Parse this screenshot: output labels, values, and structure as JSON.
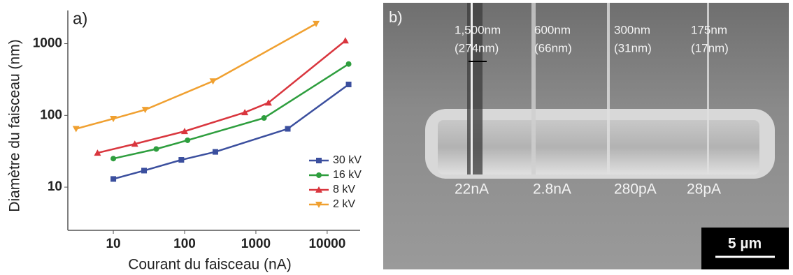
{
  "chart_data": {
    "type": "line",
    "panel_label": "a)",
    "x_label": "Courant du faisceau (nA)",
    "y_label": "Diamètre du faisceau (nm)",
    "xscale": "log",
    "yscale": "log",
    "xlim": [
      2.3,
      29000
    ],
    "ylim": [
      2.5,
      2900
    ],
    "xticks": [
      10,
      100,
      1000,
      10000
    ],
    "yticks": [
      10,
      100,
      1000
    ],
    "series": [
      {
        "name": "30 kV",
        "color": "#3b4f9e",
        "marker": "square",
        "x": [
          10,
          27,
          90,
          270,
          2800,
          20000
        ],
        "values": [
          13,
          17,
          24,
          31,
          65,
          270
        ]
      },
      {
        "name": "16 kV",
        "color": "#2e9e3e",
        "marker": "circle",
        "x": [
          10,
          40,
          110,
          1300,
          20000
        ],
        "values": [
          25,
          34,
          45,
          92,
          520
        ]
      },
      {
        "name": "8 kV",
        "color": "#d9363e",
        "marker": "triangle",
        "x": [
          6,
          20,
          100,
          700,
          1500,
          18000
        ],
        "values": [
          30,
          40,
          60,
          110,
          150,
          1100
        ]
      },
      {
        "name": "2 kV",
        "color": "#f0a030",
        "marker": "triangle-down",
        "x": [
          3,
          10,
          28,
          250,
          7000
        ],
        "values": [
          65,
          90,
          120,
          300,
          1900
        ]
      }
    ]
  },
  "image": {
    "panel_label": "b)",
    "widths": [
      "1,500nm",
      "600nm",
      "300nm",
      "175nm"
    ],
    "measured": [
      "(274nm)",
      "(66nm)",
      "(31nm)",
      "(17nm)"
    ],
    "currents": [
      "22nA",
      "2.8nA",
      "280pA",
      "28pA"
    ],
    "scale_bar": "5 µm"
  }
}
